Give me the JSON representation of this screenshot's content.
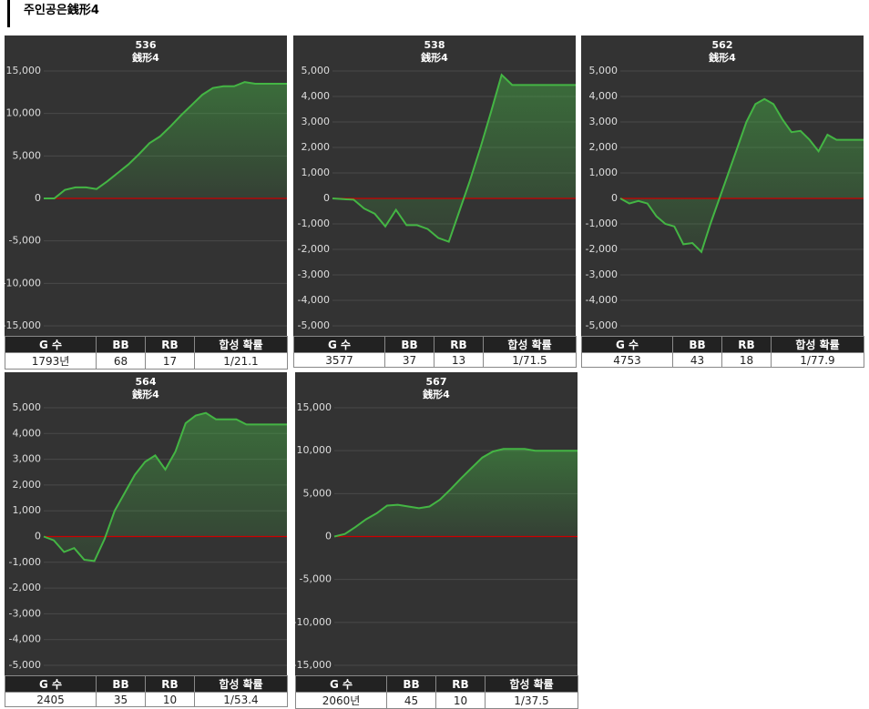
{
  "title": "주인공은銭形4",
  "chart_data": [
    {
      "type": "line",
      "title": "536",
      "subtitle": "銭形4",
      "color": "#44b544",
      "baseline_color": "#cc0000",
      "grid": true,
      "values": [
        0,
        0,
        1000,
        1300,
        1300,
        1100,
        2000,
        3000,
        4000,
        5200,
        6500,
        7300,
        8500,
        9800,
        11000,
        12200,
        13000,
        13200,
        13200,
        13700,
        13500,
        13500,
        13500,
        13500
      ],
      "ylim": [
        -15000,
        15000
      ],
      "yticks": [
        {
          "value": -15000,
          "label": "-15,000"
        },
        {
          "value": -10000,
          "label": "-10,000"
        },
        {
          "value": -5000,
          "label": "-5,000"
        },
        0,
        {
          "value": 5000,
          "label": "5,000"
        },
        {
          "value": 10000,
          "label": "10,000"
        },
        {
          "value": 15000,
          "label": "15,000"
        }
      ]
    },
    {
      "type": "line",
      "title": "538",
      "subtitle": "銭形4",
      "color": "#44b544",
      "baseline_color": "#cc0000",
      "grid": true,
      "values": [
        0,
        -30,
        -50,
        -400,
        -600,
        -1100,
        -450,
        -1050,
        -1050,
        -1200,
        -1550,
        -1700,
        -500,
        700,
        2000,
        3400,
        4850,
        4450,
        4450,
        4450,
        4450,
        4450,
        4450,
        4450
      ],
      "ylim": [
        -5000,
        5000
      ],
      "yticks": [
        {
          "value": -5000,
          "label": "-5,000"
        },
        {
          "value": -4000,
          "label": "-4,000"
        },
        {
          "value": -3000,
          "label": "-3,000"
        },
        {
          "value": -2000,
          "label": "-2,000"
        },
        {
          "value": -1000,
          "label": "-1,000"
        },
        0,
        {
          "value": 1000,
          "label": "1,000"
        },
        {
          "value": 2000,
          "label": "2,000"
        },
        {
          "value": 3000,
          "label": "3,000"
        },
        {
          "value": 4000,
          "label": "4,000"
        },
        {
          "value": 5000,
          "label": "5,000"
        }
      ]
    },
    {
      "type": "line",
      "title": "562",
      "subtitle": "銭形4",
      "color": "#44b544",
      "baseline_color": "#cc0000",
      "grid": true,
      "values": [
        0,
        -200,
        -100,
        -200,
        -700,
        -1000,
        -1100,
        -1800,
        -1750,
        -2100,
        -1000,
        0,
        1000,
        2000,
        3000,
        3700,
        3900,
        3700,
        3100,
        2600,
        2650,
        2300,
        1850,
        2500,
        2300,
        2300,
        2300,
        2300
      ],
      "ylim": [
        -5000,
        5000
      ],
      "yticks": [
        {
          "value": -5000,
          "label": "-5,000"
        },
        {
          "value": -4000,
          "label": "-4,000"
        },
        {
          "value": -3000,
          "label": "-3,000"
        },
        {
          "value": -2000,
          "label": "-2,000"
        },
        {
          "value": -1000,
          "label": "-1,000"
        },
        0,
        {
          "value": 1000,
          "label": "1,000"
        },
        {
          "value": 2000,
          "label": "2,000"
        },
        {
          "value": 3000,
          "label": "3,000"
        },
        {
          "value": 4000,
          "label": "4,000"
        },
        {
          "value": 5000,
          "label": "5,000"
        }
      ]
    },
    {
      "type": "line",
      "title": "564",
      "subtitle": "銭形4",
      "color": "#44b544",
      "baseline_color": "#cc0000",
      "grid": true,
      "values": [
        0,
        -150,
        -600,
        -450,
        -900,
        -950,
        -100,
        1000,
        1700,
        2400,
        2900,
        3150,
        2600,
        3300,
        4400,
        4700,
        4800,
        4550,
        4550,
        4550,
        4350,
        4350,
        4350,
        4350,
        4350
      ],
      "ylim": [
        -5000,
        5000
      ],
      "yticks": [
        {
          "value": -5000,
          "label": "-5,000"
        },
        {
          "value": -4000,
          "label": "-4,000"
        },
        {
          "value": -3000,
          "label": "-3,000"
        },
        {
          "value": -2000,
          "label": "-2,000"
        },
        {
          "value": -1000,
          "label": "-1,000"
        },
        0,
        {
          "value": 1000,
          "label": "1,000"
        },
        {
          "value": 2000,
          "label": "2,000"
        },
        {
          "value": 3000,
          "label": "3,000"
        },
        {
          "value": 4000,
          "label": "4,000"
        },
        {
          "value": 5000,
          "label": "5,000"
        }
      ]
    },
    {
      "type": "line",
      "title": "567",
      "subtitle": "銭形4",
      "color": "#44b544",
      "baseline_color": "#cc0000",
      "grid": true,
      "values": [
        0,
        300,
        1100,
        2000,
        2700,
        3600,
        3700,
        3500,
        3300,
        3500,
        4300,
        5500,
        6800,
        8000,
        9200,
        9900,
        10200,
        10200,
        10200,
        10000,
        10000,
        10000,
        10000,
        10000
      ],
      "ylim": [
        -15000,
        15000
      ],
      "yticks": [
        {
          "value": -15000,
          "label": "-15,000"
        },
        {
          "value": -10000,
          "label": "-10,000"
        },
        {
          "value": -5000,
          "label": "-5,000"
        },
        0,
        {
          "value": 5000,
          "label": "5,000"
        },
        {
          "value": 10000,
          "label": "10,000"
        },
        {
          "value": 15000,
          "label": "15,000"
        }
      ]
    }
  ],
  "tables": [
    {
      "header": [
        "G 수",
        "BB",
        "RB",
        "합성 확률"
      ],
      "row": [
        "1793년",
        "68",
        "17",
        "1/21.1"
      ]
    },
    {
      "header": [
        "G 수",
        "BB",
        "RB",
        "합성 확률"
      ],
      "row": [
        "3577",
        "37",
        "13",
        "1/71.5"
      ]
    },
    {
      "header": [
        "G 수",
        "BB",
        "RB",
        "합성 확률"
      ],
      "row": [
        "4753",
        "43",
        "18",
        "1/77.9"
      ]
    },
    {
      "header": [
        "G 수",
        "BB",
        "RB",
        "합성 확률"
      ],
      "row": [
        "2405",
        "35",
        "10",
        "1/53.4"
      ]
    },
    {
      "header": [
        "G 수",
        "BB",
        "RB",
        "합성 확률"
      ],
      "row": [
        "2060년",
        "45",
        "10",
        "1/37.5"
      ]
    }
  ]
}
